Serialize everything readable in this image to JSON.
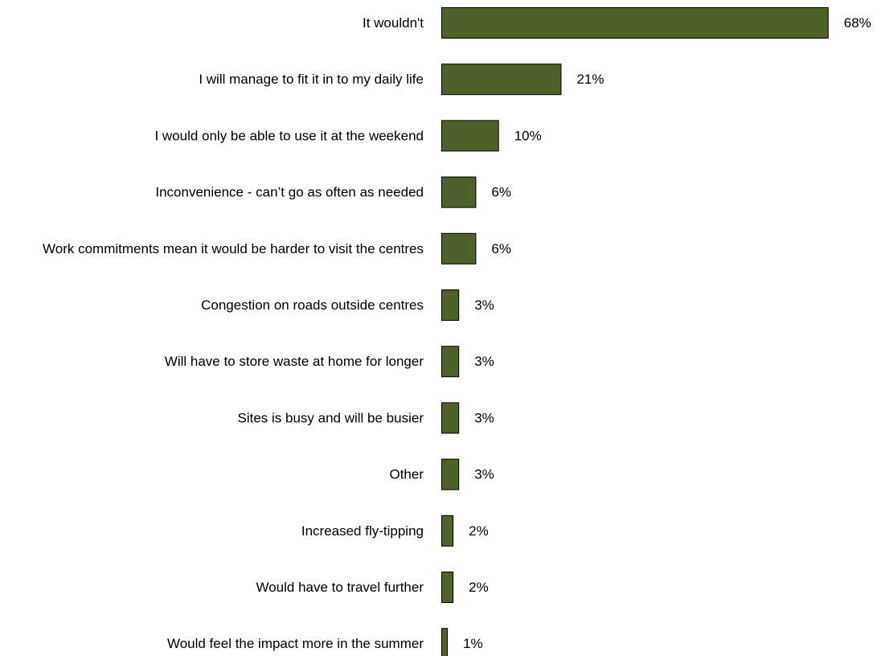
{
  "chart_data": {
    "type": "bar",
    "orientation": "horizontal",
    "categories": [
      "It wouldn't",
      "I will manage to fit it in to my daily life",
      "I would only be able to use it at the weekend",
      "Inconvenience - can’t go as often as needed",
      "Work commitments mean it would be harder to visit the centres",
      "Congestion on roads outside centres",
      "Will have to store waste at home for longer",
      "Sites is busy and will be busier",
      "Other",
      "Increased fly-tipping",
      "Would have to travel further",
      "Would feel the impact more in the summer"
    ],
    "values": [
      68,
      21,
      10,
      6,
      6,
      3,
      3,
      3,
      3,
      2,
      2,
      1
    ],
    "value_labels": [
      "68%",
      "21%",
      "10%",
      "6%",
      "6%",
      "3%",
      "3%",
      "3%",
      "3%",
      "2%",
      "2%",
      "1%"
    ],
    "unit": "%",
    "xlim": [
      0,
      70
    ],
    "grid": false,
    "legend": "none",
    "colors": {
      "bar_fill": "#4e6128",
      "bar_border": "#000000"
    }
  }
}
